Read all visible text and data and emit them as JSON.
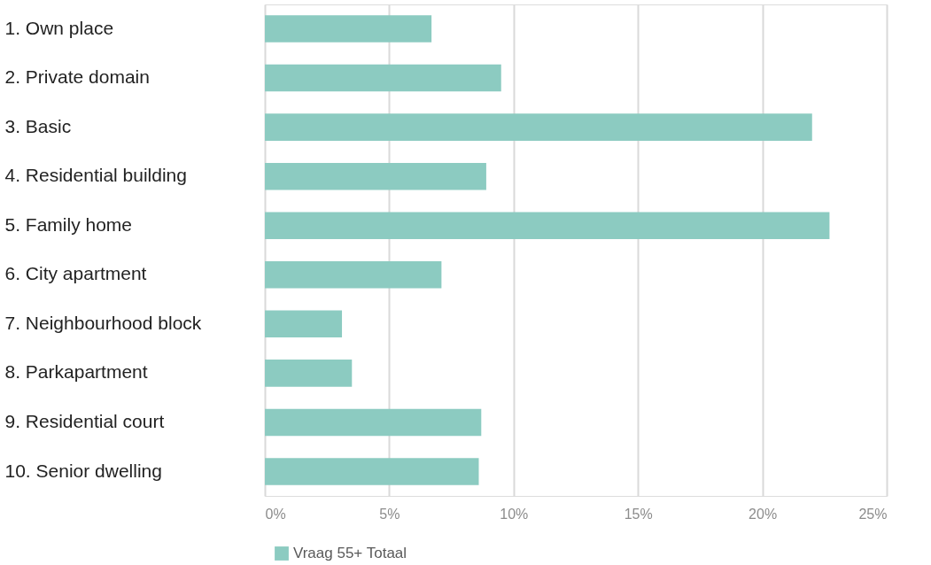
{
  "chart_data": {
    "type": "bar",
    "orientation": "horizontal",
    "categories": [
      "1. Own place",
      "2. Private domain",
      "3. Basic",
      "4. Residential building",
      "5. Family home",
      "6. City apartment",
      "7. Neighbourhood block",
      "8. Parkapartment",
      "9. Residential court",
      "10. Senior dwelling"
    ],
    "series": [
      {
        "name": "Vraag 55+ Totaal",
        "color": "#8ccbc1",
        "values": [
          6.7,
          9.5,
          22.0,
          8.9,
          22.7,
          7.1,
          3.1,
          3.5,
          8.7,
          8.6
        ]
      }
    ],
    "xlim": [
      0,
      25
    ],
    "xticks": [
      {
        "value": 0,
        "label": "0%"
      },
      {
        "value": 5,
        "label": "5%"
      },
      {
        "value": 10,
        "label": "10%"
      },
      {
        "value": 15,
        "label": "15%"
      },
      {
        "value": 20,
        "label": "20%"
      },
      {
        "value": 25,
        "label": "25%"
      }
    ],
    "grid": "x",
    "legend": "bottom"
  }
}
